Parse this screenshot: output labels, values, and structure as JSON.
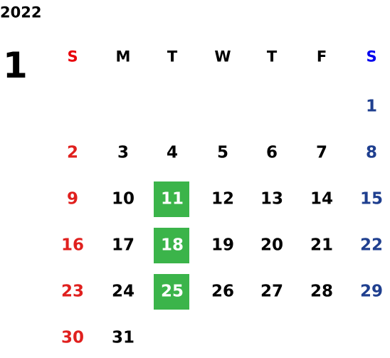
{
  "year": "2022",
  "month": "1",
  "weekdays": [
    "S",
    "M",
    "T",
    "W",
    "T",
    "F",
    "S"
  ],
  "weeks": [
    [
      null,
      null,
      null,
      null,
      null,
      null,
      1
    ],
    [
      2,
      3,
      4,
      5,
      6,
      7,
      8
    ],
    [
      9,
      10,
      {
        "day": 11,
        "highlighted": true
      },
      12,
      13,
      14,
      15
    ],
    [
      16,
      17,
      {
        "day": 18,
        "highlighted": true
      },
      19,
      20,
      21,
      22
    ],
    [
      23,
      24,
      {
        "day": 25,
        "highlighted": true
      },
      26,
      27,
      28,
      29
    ],
    [
      30,
      31,
      null,
      null,
      null,
      null,
      null
    ]
  ],
  "colors": {
    "sunday_header": "#e8000b",
    "saturday_header": "#0000ee",
    "sunday": "#e0201e",
    "saturday": "#1f3f8f",
    "weekday": "#000000",
    "highlight": "#3bb44a",
    "highlight_text": "#ffffff"
  }
}
